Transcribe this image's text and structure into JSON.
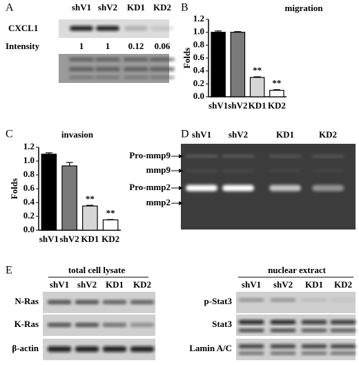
{
  "panel_labels": [
    "A",
    "B",
    "C",
    "D",
    "E"
  ],
  "panel_a": {
    "lanes": [
      "shV1",
      "shV2",
      "KD1",
      "KD2"
    ],
    "row_label": "CXCL1",
    "intensity_label": "Intensity",
    "intensity": [
      1,
      1,
      0.12,
      0.06
    ]
  },
  "chart_data": [
    {
      "type": "bar",
      "title": "migration",
      "ylabel": "Folds",
      "categories": [
        "shV1",
        "shV2",
        "KD1",
        "KD2"
      ],
      "values": [
        1.0,
        1.0,
        0.3,
        0.1
      ],
      "errors": [
        0.02,
        0.01,
        0.01,
        0.01
      ],
      "annotations": [
        null,
        null,
        "**",
        "**"
      ],
      "colors": [
        "#000000",
        "#7a7a7a",
        "#d6d6d6",
        "#ffffff"
      ],
      "ylim": [
        0,
        1.2
      ],
      "yticks": [
        {
          "value": 0,
          "label": "0.0"
        },
        {
          "value": 0.2,
          "label": "0.2"
        },
        {
          "value": 0.4,
          "label": "0.4"
        },
        {
          "value": 0.6,
          "label": "0.6"
        },
        {
          "value": 0.8,
          "label": "0.8"
        },
        {
          "value": 1,
          "label": "1.0"
        },
        {
          "value": 1.2,
          "label": "1.2"
        }
      ]
    },
    {
      "type": "bar",
      "title": "invasion",
      "ylabel": "Folds",
      "categories": [
        "shV1",
        "shV2",
        "KD1",
        "KD2"
      ],
      "values": [
        1.1,
        0.93,
        0.35,
        0.15
      ],
      "errors": [
        0.02,
        0.05,
        0.01,
        0.005
      ],
      "annotations": [
        null,
        null,
        "**",
        "**"
      ],
      "colors": [
        "#000000",
        "#7a7a7a",
        "#d6d6d6",
        "#ffffff"
      ],
      "ylim": [
        0,
        1.2
      ],
      "yticks": [
        {
          "value": 0,
          "label": "0.0"
        },
        {
          "value": 0.2,
          "label": "0.2"
        },
        {
          "value": 0.4,
          "label": "0.4"
        },
        {
          "value": 0.6,
          "label": "0.6"
        },
        {
          "value": 0.8,
          "label": "0.8"
        },
        {
          "value": 1,
          "label": "1.0"
        },
        {
          "value": 1.2,
          "label": "1.2"
        }
      ]
    }
  ],
  "panel_d": {
    "lanes": [
      "shV1",
      "shV2",
      "KD1",
      "KD2"
    ],
    "bands": [
      "Pro-mmp9",
      "mmp9",
      "Pro-mmp2",
      "mmp2"
    ]
  },
  "panel_e": {
    "total": {
      "title": "total cell lysate",
      "lanes": [
        "shV1",
        "shV2",
        "KD1",
        "KD2"
      ],
      "rows": [
        "N-Ras",
        "K-Ras",
        "β-actin"
      ]
    },
    "nuclear": {
      "title": "nuclear extract",
      "lanes": [
        "shV1",
        "shV2",
        "KD1",
        "KD2"
      ],
      "rows": [
        "p-Stat3",
        "Stat3",
        "Lamin A/C"
      ]
    }
  }
}
